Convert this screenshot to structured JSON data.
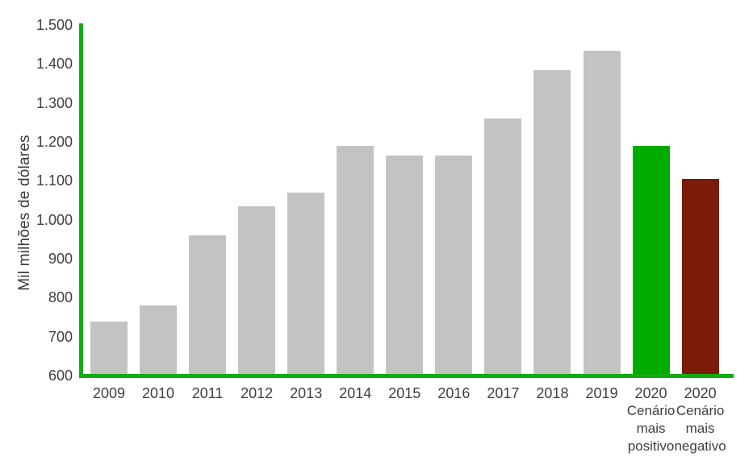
{
  "chart_data": {
    "type": "bar",
    "title": "",
    "xlabel": "",
    "ylabel": "Mil milhões de dólares",
    "ylim": [
      600,
      1500
    ],
    "grid": false,
    "legend_position": "none",
    "ytick_labels": [
      "600",
      "700",
      "800",
      "900",
      "1.000",
      "1.100",
      "1.200",
      "1.300",
      "1.400",
      "1.500"
    ],
    "ytick_values": [
      600,
      700,
      800,
      900,
      1000,
      1100,
      1200,
      1300,
      1400,
      1500
    ],
    "categories": [
      "2009",
      "2010",
      "2011",
      "2012",
      "2013",
      "2014",
      "2015",
      "2016",
      "2017",
      "2018",
      "2019",
      "2020 Cenário mais positivo",
      "2020 Cenário mais negativo"
    ],
    "bars": [
      {
        "category": "2009",
        "label_lines": [
          "2009"
        ],
        "value": 735,
        "color_key": "default"
      },
      {
        "category": "2010",
        "label_lines": [
          "2010"
        ],
        "value": 775,
        "color_key": "default"
      },
      {
        "category": "2011",
        "label_lines": [
          "2011"
        ],
        "value": 955,
        "color_key": "default"
      },
      {
        "category": "2012",
        "label_lines": [
          "2012"
        ],
        "value": 1030,
        "color_key": "default"
      },
      {
        "category": "2013",
        "label_lines": [
          "2013"
        ],
        "value": 1065,
        "color_key": "default"
      },
      {
        "category": "2014",
        "label_lines": [
          "2014"
        ],
        "value": 1185,
        "color_key": "default"
      },
      {
        "category": "2015",
        "label_lines": [
          "2015"
        ],
        "value": 1160,
        "color_key": "default"
      },
      {
        "category": "2016",
        "label_lines": [
          "2016"
        ],
        "value": 1160,
        "color_key": "default"
      },
      {
        "category": "2017",
        "label_lines": [
          "2017"
        ],
        "value": 1255,
        "color_key": "default"
      },
      {
        "category": "2018",
        "label_lines": [
          "2018"
        ],
        "value": 1380,
        "color_key": "default"
      },
      {
        "category": "2019",
        "label_lines": [
          "2019"
        ],
        "value": 1430,
        "color_key": "default"
      },
      {
        "category": "2020 Cenário mais positivo",
        "label_lines": [
          "2020",
          "Cenário",
          "mais",
          "positivo"
        ],
        "value": 1185,
        "color_key": "positive"
      },
      {
        "category": "2020 Cenário mais negativo",
        "label_lines": [
          "2020",
          "Cenário",
          "mais",
          "negativo"
        ],
        "value": 1100,
        "color_key": "negative"
      }
    ],
    "colors": {
      "default": "#c3c3c3",
      "positive": "#00ab00",
      "negative": "#7b1b08",
      "axis": "#12ac12",
      "tick_text": "#3f3f3f"
    }
  }
}
